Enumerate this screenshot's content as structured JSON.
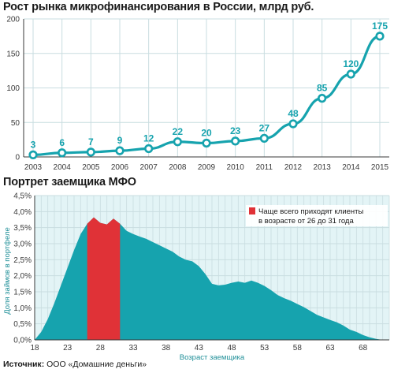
{
  "colors": {
    "teal": "#16a3ae",
    "teal_light": "#e3f4f6",
    "red": "#e03237",
    "grid": "#c9dde0",
    "axis": "#3a3a3a"
  },
  "chart_data": [
    {
      "type": "line",
      "title": "Рост рынка микрофинансирования в России, млрд руб.",
      "x": [
        "2003",
        "2004",
        "2005",
        "2006",
        "2007",
        "2008",
        "2009",
        "2010",
        "2011",
        "2012",
        "2013",
        "2014",
        "2015"
      ],
      "series": [
        {
          "values": [
            3,
            6,
            7,
            9,
            12,
            22,
            20,
            23,
            27,
            48,
            85,
            120,
            175
          ]
        }
      ],
      "yticks": [
        "0",
        "50",
        "100",
        "150",
        "200"
      ],
      "ylim": [
        0,
        200
      ],
      "grid": true
    },
    {
      "type": "area",
      "title": "Портрет заемщика МФО",
      "xlabel": "Возраст заемщика",
      "ylabel": "Доля займов в портфеле",
      "xticks": [
        "18",
        "23",
        "28",
        "33",
        "38",
        "43",
        "48",
        "53",
        "58",
        "63",
        "68"
      ],
      "yticks": [
        "0,0%",
        "0,5%",
        "1,0%",
        "1,5%",
        "2,0%",
        "2,5%",
        "3,0%",
        "3,5%",
        "4,0%",
        "4,5%"
      ],
      "ylim": [
        0,
        4.5
      ],
      "xlim": [
        18,
        72
      ],
      "x": [
        18,
        19,
        20,
        21,
        22,
        23,
        24,
        25,
        26,
        27,
        28,
        29,
        30,
        31,
        32,
        33,
        34,
        35,
        36,
        37,
        38,
        39,
        40,
        41,
        42,
        43,
        44,
        45,
        46,
        47,
        48,
        49,
        50,
        51,
        52,
        53,
        54,
        55,
        56,
        57,
        58,
        59,
        60,
        61,
        62,
        63,
        64,
        65,
        66,
        67,
        68,
        69,
        70,
        71,
        72
      ],
      "values": [
        0.0,
        0.25,
        0.65,
        1.15,
        1.7,
        2.25,
        2.8,
        3.3,
        3.62,
        3.82,
        3.65,
        3.6,
        3.78,
        3.62,
        3.4,
        3.3,
        3.22,
        3.15,
        3.05,
        2.95,
        2.85,
        2.75,
        2.6,
        2.5,
        2.45,
        2.3,
        2.05,
        1.75,
        1.7,
        1.72,
        1.78,
        1.82,
        1.78,
        1.85,
        1.78,
        1.68,
        1.55,
        1.4,
        1.3,
        1.22,
        1.12,
        1.02,
        0.9,
        0.78,
        0.7,
        0.62,
        0.55,
        0.45,
        0.32,
        0.25,
        0.15,
        0.08,
        0.03,
        0.0,
        0.0
      ],
      "highlight": {
        "from": 26,
        "to": 31,
        "label_lines": [
          "Чаще всего приходят клиенты",
          "в возрасте от 26 до 31 года"
        ]
      },
      "grid": true
    }
  ],
  "source": {
    "label": "Источник:",
    "text": "ООО «Домашние деньги»"
  }
}
